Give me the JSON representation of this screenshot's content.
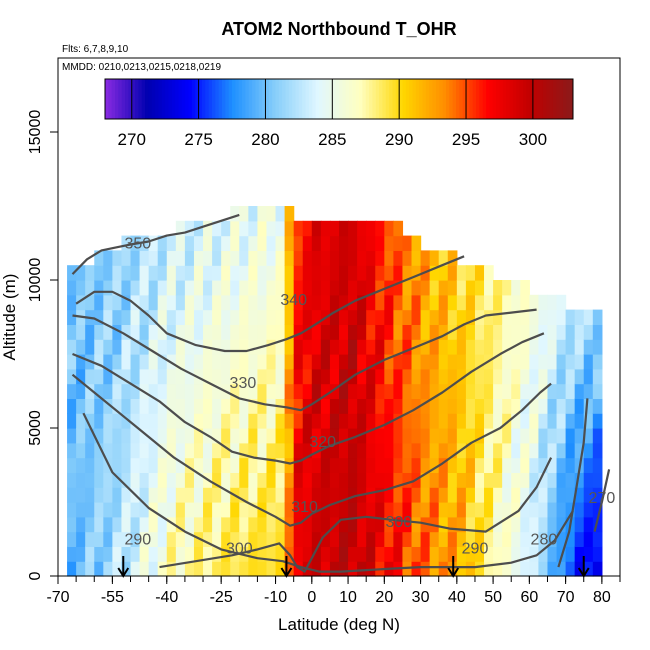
{
  "chart_data": {
    "type": "heatmap",
    "title": "ATOM2 Northbound T_OHR",
    "flights_label": "Flts: 6,7,8,9,10",
    "dates_label": "MMDD: 0210,0213,0215,0218,0219",
    "xlabel": "Latitude (deg N)",
    "ylabel": "Altitude (m)",
    "xlim": [
      -70,
      85
    ],
    "ylim": [
      0,
      17500
    ],
    "x_ticks": [
      -70,
      -55,
      -40,
      -25,
      -10,
      0,
      10,
      20,
      30,
      40,
      50,
      60,
      70,
      80
    ],
    "x_tick_labels": [
      "-70",
      "-55",
      "-40",
      "-25",
      "-10",
      "0",
      "10",
      "20",
      "30",
      "40",
      "50",
      "60",
      "70",
      "80"
    ],
    "y_ticks": [
      0,
      5000,
      10000,
      15000
    ],
    "y_tick_labels": [
      "0",
      "5000",
      "10000",
      "15000"
    ],
    "colorbar": {
      "range": [
        268,
        303
      ],
      "tick_values": [
        270,
        275,
        280,
        285,
        290,
        295,
        300
      ],
      "tick_labels": [
        "270",
        "275",
        "280",
        "285",
        "290",
        "295",
        "300"
      ],
      "colors": [
        "#8a2be2",
        "#0000b0",
        "#0000ff",
        "#1e90ff",
        "#87cefa",
        "#e0f7ff",
        "#ffffc0",
        "#ffd700",
        "#ff8c00",
        "#ff0000",
        "#c00000",
        "#8b1a1a"
      ]
    },
    "grid": false,
    "temperature_field": {
      "latitudes": [
        -70,
        -55,
        -40,
        -25,
        -10,
        -5,
        0,
        10,
        20,
        30,
        40,
        50,
        60,
        70,
        80
      ],
      "altitude_top": [
        10000,
        11000,
        11500,
        12000,
        12500,
        12000,
        12000,
        12000,
        12000,
        11000,
        10500,
        10000,
        9500,
        9000,
        9000
      ],
      "surface_temperature_K": [
        279,
        282,
        287,
        289,
        290,
        298,
        299,
        300,
        297,
        294,
        292,
        287,
        283,
        276,
        272
      ],
      "upper_temperature_K": [
        280,
        281,
        283,
        284,
        285,
        296,
        298,
        299,
        295,
        292,
        290,
        288,
        286,
        283,
        282
      ]
    },
    "contours": [
      {
        "label": "290",
        "x": [
          -63,
          -55,
          -45,
          -35,
          -25,
          -15,
          -8,
          -3,
          2,
          8,
          15,
          22,
          30,
          38,
          45,
          55,
          62,
          67,
          72
        ],
        "y": [
          5500,
          3500,
          2300,
          1500,
          900,
          600,
          500,
          300,
          150,
          150,
          200,
          250,
          300,
          300,
          300,
          450,
          700,
          1200,
          2200
        ]
      },
      {
        "label": "300",
        "x": [
          -42,
          -32,
          -22,
          -15,
          -9,
          -6,
          -4,
          -2,
          0,
          3,
          8,
          15,
          22,
          30,
          38,
          48,
          57,
          62,
          66
        ],
        "y": [
          300,
          500,
          700,
          900,
          1100,
          700,
          300,
          150,
          600,
          1300,
          1900,
          2000,
          1900,
          1800,
          1600,
          1500,
          2200,
          3000,
          4000
        ]
      },
      {
        "label": "310",
        "x": [
          -66,
          -58,
          -48,
          -38,
          -28,
          -18,
          -10,
          -6,
          -3,
          0,
          5,
          12,
          20,
          28,
          36,
          44,
          52,
          58,
          63,
          66
        ],
        "y": [
          6800,
          6000,
          5000,
          4000,
          3200,
          2500,
          2000,
          1700,
          1800,
          2100,
          2400,
          2700,
          2900,
          3200,
          3800,
          4500,
          5000,
          5600,
          6200,
          6500
        ]
      },
      {
        "label": "320",
        "x": [
          -66,
          -58,
          -50,
          -42,
          -35,
          -28,
          -22,
          -16,
          -10,
          -6,
          -3,
          0,
          5,
          12,
          20,
          28,
          36,
          44,
          52,
          58,
          64
        ],
        "y": [
          7500,
          7100,
          6500,
          5900,
          5200,
          4700,
          4200,
          4000,
          3900,
          3800,
          3900,
          4100,
          4400,
          4700,
          5100,
          5600,
          6200,
          6900,
          7500,
          7900,
          8200
        ]
      },
      {
        "label": "330",
        "x": [
          -66,
          -60,
          -52,
          -44,
          -36,
          -28,
          -20,
          -13,
          -7,
          -3,
          0,
          5,
          12,
          20,
          28,
          36,
          42,
          48,
          55,
          62
        ],
        "y": [
          8800,
          8700,
          8200,
          7600,
          7000,
          6500,
          6000,
          5800,
          5700,
          5600,
          5800,
          6200,
          6800,
          7300,
          7700,
          8100,
          8500,
          8800,
          8900,
          9000
        ]
      },
      {
        "label": "340",
        "x": [
          -65,
          -60,
          -55,
          -50,
          -45,
          -40,
          -32,
          -24,
          -18,
          -12,
          -7,
          -3,
          1,
          6,
          12,
          18,
          24,
          30,
          36,
          42
        ],
        "y": [
          9200,
          9600,
          9600,
          9300,
          8800,
          8200,
          7800,
          7600,
          7600,
          7800,
          8000,
          8200,
          8500,
          8900,
          9300,
          9600,
          9900,
          10200,
          10500,
          10800
        ]
      },
      {
        "label": "350",
        "x": [
          -66,
          -62,
          -58,
          -54,
          -50,
          -45,
          -40,
          -35,
          -30,
          -25,
          -20
        ],
        "y": [
          10200,
          10700,
          11000,
          11100,
          11200,
          11300,
          11500,
          11600,
          11800,
          12000,
          12200
        ]
      },
      {
        "label": "280",
        "x": [
          68,
          71,
          73,
          75,
          76
        ],
        "y": [
          300,
          1500,
          3000,
          4500,
          6000
        ]
      },
      {
        "label": "270",
        "x": [
          78,
          80,
          82
        ],
        "y": [
          1500,
          2500,
          3600
        ]
      }
    ],
    "contour_labels": [
      {
        "text": "350",
        "x": -48,
        "y": 11200
      },
      {
        "text": "340",
        "x": -5,
        "y": 9300
      },
      {
        "text": "330",
        "x": -19,
        "y": 6500
      },
      {
        "text": "320",
        "x": 3,
        "y": 4500
      },
      {
        "text": "310",
        "x": -2,
        "y": 2300
      },
      {
        "text": "300",
        "x": -20,
        "y": 900
      },
      {
        "text": "300",
        "x": 24,
        "y": 1800
      },
      {
        "text": "290",
        "x": -48,
        "y": 1200
      },
      {
        "text": "290",
        "x": 45,
        "y": 900
      },
      {
        "text": "280",
        "x": 64,
        "y": 1200
      },
      {
        "text": "270",
        "x": 80,
        "y": 2600
      }
    ],
    "arrow_latitudes": [
      -52,
      -7,
      39,
      75
    ]
  }
}
